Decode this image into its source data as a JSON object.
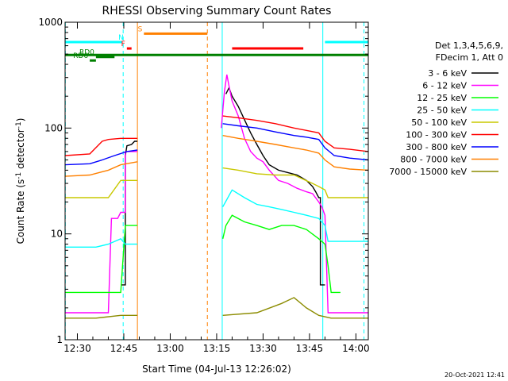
{
  "chart_data": {
    "type": "line",
    "title": "RHESSI Observing Summary Count Rates",
    "xlabel": "Start Time (04-Jul-13 12:26:02)",
    "ylabel_main": "Count Rate (s",
    "ylabel_sup": "-1",
    "ylabel_tail": " detector",
    "ylabel_end": ")",
    "timestamp": "20-Oct-2021 12:41",
    "x_start_minutes": 26.03,
    "xlim_minutes": [
      26.03,
      124.0
    ],
    "ylim": [
      1,
      1000
    ],
    "y_scale": "log",
    "x_tick_minutes": [
      30,
      45,
      60,
      75,
      90,
      105,
      120
    ],
    "x_tick_labels": [
      "12:30",
      "12:45",
      "13:00",
      "13:15",
      "13:30",
      "13:45",
      "14:00"
    ],
    "y_tick_values": [
      1,
      10,
      100,
      1000
    ],
    "y_tick_labels": [
      "1",
      "10",
      "100",
      "1000"
    ],
    "legend_header": [
      "Det 1,3,4,5,6,9,",
      "FDecim 1, Att 0"
    ],
    "legend_placement": "right",
    "series": [
      {
        "name": "3 - 6 keV",
        "color": "#000000",
        "points": [
          [
            44,
            3.3
          ],
          [
            45.5,
            3.3
          ],
          [
            45.5,
            55
          ],
          [
            46,
            68
          ],
          [
            47.5,
            70
          ],
          [
            48.5,
            75
          ],
          [
            49.4,
            75
          ],
          [
            49.4,
            null
          ],
          [
            78,
            null
          ],
          [
            78,
            210
          ],
          [
            79,
            240
          ],
          [
            80,
            200
          ],
          [
            82,
            160
          ],
          [
            84,
            120
          ],
          [
            86,
            90
          ],
          [
            88,
            70
          ],
          [
            90,
            55
          ],
          [
            92,
            45
          ],
          [
            95,
            40
          ],
          [
            98,
            38
          ],
          [
            101,
            36
          ],
          [
            104,
            32
          ],
          [
            106,
            28
          ],
          [
            107,
            25
          ],
          [
            108,
            22
          ],
          [
            108.5,
            22
          ],
          [
            108.5,
            3.3
          ],
          [
            110,
            3.3
          ]
        ]
      },
      {
        "name": "6 - 12 keV",
        "color": "#ff00ff",
        "points": [
          [
            26.1,
            1.8
          ],
          [
            36,
            1.8
          ],
          [
            40,
            1.8
          ],
          [
            41,
            14
          ],
          [
            43,
            14
          ],
          [
            44,
            16
          ],
          [
            45.5,
            16
          ],
          [
            45.5,
            60
          ],
          [
            49.4,
            60
          ],
          [
            49.4,
            null
          ],
          [
            76.5,
            null
          ],
          [
            76.5,
            100
          ],
          [
            77.5,
            220
          ],
          [
            78.3,
            320
          ],
          [
            79,
            250
          ],
          [
            80,
            180
          ],
          [
            82,
            130
          ],
          [
            84,
            80
          ],
          [
            86,
            60
          ],
          [
            88,
            52
          ],
          [
            90,
            48
          ],
          [
            92,
            40
          ],
          [
            95,
            32
          ],
          [
            98,
            30
          ],
          [
            101,
            27
          ],
          [
            104,
            25
          ],
          [
            106,
            24
          ],
          [
            108,
            20
          ],
          [
            109,
            18
          ],
          [
            110,
            15
          ],
          [
            111,
            1.8
          ],
          [
            124,
            1.8
          ]
        ]
      },
      {
        "name": "12 - 25 keV",
        "color": "#00ff00",
        "points": [
          [
            26.1,
            2.8
          ],
          [
            37,
            2.8
          ],
          [
            40,
            2.8
          ],
          [
            44,
            2.8
          ],
          [
            45.5,
            12
          ],
          [
            49.4,
            12
          ],
          [
            49.4,
            null
          ],
          [
            77,
            null
          ],
          [
            77,
            9
          ],
          [
            78,
            12
          ],
          [
            80,
            15
          ],
          [
            84,
            13
          ],
          [
            88,
            12
          ],
          [
            92,
            11
          ],
          [
            96,
            12
          ],
          [
            100,
            12
          ],
          [
            104,
            11
          ],
          [
            108,
            9
          ],
          [
            110,
            8
          ],
          [
            111,
            5
          ],
          [
            112,
            2.8
          ],
          [
            115,
            2.8
          ]
        ]
      },
      {
        "name": "25 - 50 keV",
        "color": "#00ffff",
        "points": [
          [
            26.1,
            7.5
          ],
          [
            32,
            7.5
          ],
          [
            36,
            7.5
          ],
          [
            40,
            8
          ],
          [
            44,
            9
          ],
          [
            45.5,
            8
          ],
          [
            49.4,
            8
          ],
          [
            49.4,
            null
          ],
          [
            77,
            null
          ],
          [
            77,
            18
          ],
          [
            80,
            26
          ],
          [
            84,
            22
          ],
          [
            88,
            19
          ],
          [
            92,
            18
          ],
          [
            96,
            17
          ],
          [
            100,
            16
          ],
          [
            104,
            15
          ],
          [
            108,
            14
          ],
          [
            110,
            12
          ],
          [
            111,
            8.5
          ],
          [
            124,
            8.5
          ]
        ]
      },
      {
        "name": "50 - 100 keV",
        "color": "#c8c800",
        "points": [
          [
            26.1,
            22
          ],
          [
            33,
            22
          ],
          [
            40,
            22
          ],
          [
            44,
            32
          ],
          [
            49.4,
            32
          ],
          [
            49.4,
            null
          ],
          [
            77,
            null
          ],
          [
            77,
            42
          ],
          [
            82,
            40
          ],
          [
            88,
            37
          ],
          [
            94,
            36
          ],
          [
            100,
            36
          ],
          [
            106,
            30
          ],
          [
            108,
            28
          ],
          [
            110,
            26
          ],
          [
            111,
            22
          ],
          [
            124,
            22
          ]
        ]
      },
      {
        "name": "100 - 300 keV",
        "color": "#ff0000",
        "points": [
          [
            26.1,
            55
          ],
          [
            34,
            57
          ],
          [
            38,
            75
          ],
          [
            40,
            78
          ],
          [
            44,
            80
          ],
          [
            49.4,
            80
          ],
          [
            49.4,
            null
          ],
          [
            77,
            null
          ],
          [
            77,
            130
          ],
          [
            82,
            125
          ],
          [
            88,
            118
          ],
          [
            94,
            110
          ],
          [
            100,
            100
          ],
          [
            104,
            95
          ],
          [
            108,
            90
          ],
          [
            110,
            75
          ],
          [
            113,
            65
          ],
          [
            118,
            63
          ],
          [
            124,
            60
          ]
        ]
      },
      {
        "name": "300 - 800 keV",
        "color": "#0000ff",
        "points": [
          [
            26.1,
            45
          ],
          [
            34,
            46
          ],
          [
            38,
            50
          ],
          [
            42,
            55
          ],
          [
            46,
            60
          ],
          [
            49.4,
            62
          ],
          [
            49.4,
            null
          ],
          [
            77,
            null
          ],
          [
            77,
            110
          ],
          [
            82,
            105
          ],
          [
            88,
            100
          ],
          [
            94,
            92
          ],
          [
            100,
            85
          ],
          [
            104,
            82
          ],
          [
            108,
            78
          ],
          [
            110,
            65
          ],
          [
            113,
            55
          ],
          [
            118,
            52
          ],
          [
            124,
            50
          ]
        ]
      },
      {
        "name": "800 - 7000 keV",
        "color": "#ff8000",
        "points": [
          [
            26.1,
            35
          ],
          [
            34,
            36
          ],
          [
            40,
            40
          ],
          [
            44,
            45
          ],
          [
            49.4,
            48
          ],
          [
            49.4,
            null
          ],
          [
            77,
            null
          ],
          [
            77,
            85
          ],
          [
            82,
            80
          ],
          [
            88,
            75
          ],
          [
            94,
            70
          ],
          [
            100,
            65
          ],
          [
            104,
            62
          ],
          [
            108,
            58
          ],
          [
            110,
            50
          ],
          [
            113,
            43
          ],
          [
            118,
            41
          ],
          [
            124,
            40
          ]
        ]
      },
      {
        "name": "7000 - 15000 keV",
        "color": "#8c8c00",
        "points": [
          [
            26.1,
            1.6
          ],
          [
            36,
            1.6
          ],
          [
            44,
            1.7
          ],
          [
            49.4,
            1.7
          ],
          [
            49.4,
            null
          ],
          [
            77,
            null
          ],
          [
            77,
            1.7
          ],
          [
            88,
            1.8
          ],
          [
            96,
            2.2
          ],
          [
            100,
            2.5
          ],
          [
            104,
            2
          ],
          [
            108,
            1.7
          ],
          [
            112,
            1.6
          ],
          [
            124,
            1.6
          ]
        ]
      }
    ],
    "flag_bars": [
      {
        "label": "",
        "color": "#00ffff",
        "x0": 26.1,
        "x1": 44.5,
        "level": 650
      },
      {
        "label": "N",
        "color": "#00ffff",
        "x0": 45.5,
        "x1": 45.5,
        "level": 650
      },
      {
        "label": "S",
        "color": "#ff8000",
        "x0": 51.5,
        "x1": 72.0,
        "level": 780
      },
      {
        "label": "F",
        "color": "#ff0000",
        "x0": 46.0,
        "x1": 47.5,
        "level": 565
      },
      {
        "label": "",
        "color": "#ff0000",
        "x0": 80.0,
        "x1": 103.0,
        "level": 565
      },
      {
        "label": "",
        "color": "#008000",
        "x0": 26.1,
        "x1": 124.0,
        "level": 490
      },
      {
        "label": "RD0",
        "color": "#008000",
        "x0": 36.0,
        "x1": 42.0,
        "level": 470
      },
      {
        "label": "RD6",
        "color": "#008000",
        "x0": 34.0,
        "x1": 36.0,
        "level": 435
      },
      {
        "label": "",
        "color": "#00ffff",
        "x0": 110.0,
        "x1": 124.0,
        "level": 650
      }
    ],
    "vlines": [
      {
        "x": 26.1,
        "color": "#00ffff",
        "style": "dashed"
      },
      {
        "x": 44.8,
        "color": "#00ffff",
        "style": "dashed"
      },
      {
        "x": 49.4,
        "color": "#ff8000",
        "style": "solid"
      },
      {
        "x": 72.0,
        "color": "#ff8000",
        "style": "dashed"
      },
      {
        "x": 76.8,
        "color": "#00ffff",
        "style": "solid"
      },
      {
        "x": 109.3,
        "color": "#00ffff",
        "style": "solid"
      },
      {
        "x": 122.6,
        "color": "#00ffff",
        "style": "dashed"
      }
    ]
  }
}
